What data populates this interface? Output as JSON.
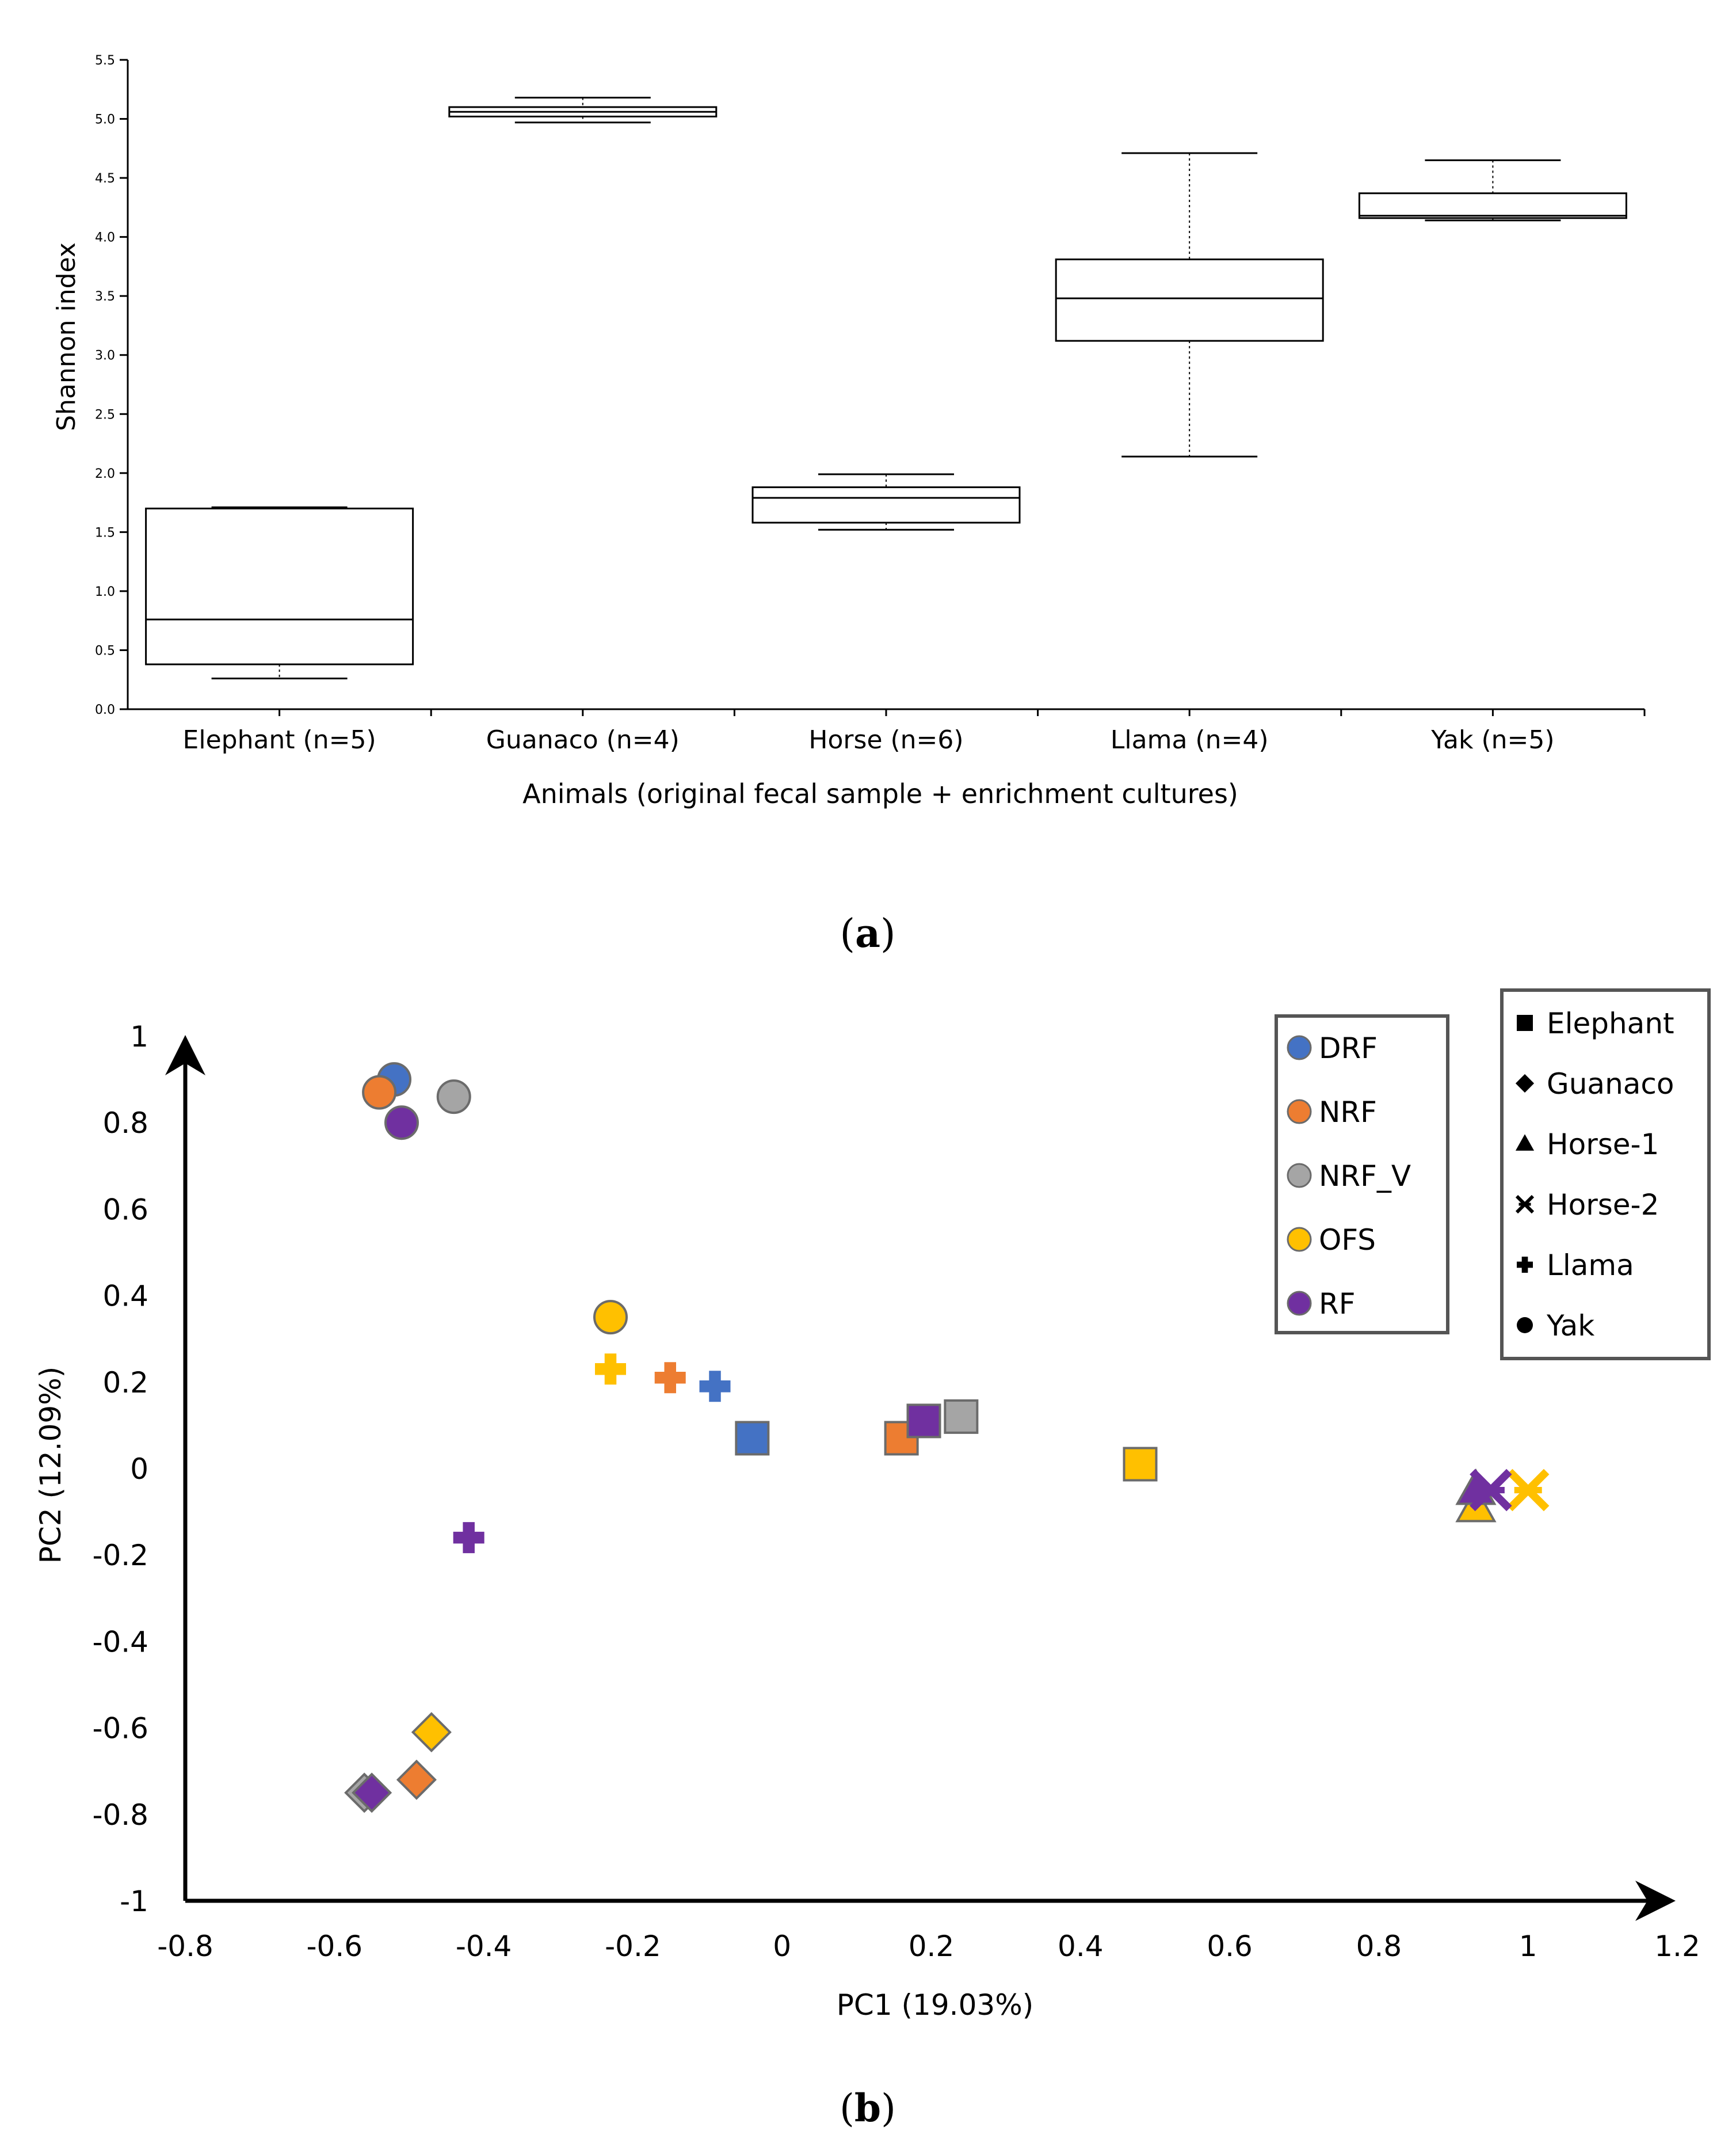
{
  "panel_a_label": {
    "open": "(",
    "letter": "a",
    "close": ")"
  },
  "panel_b_label": {
    "open": "(",
    "letter": "b",
    "close": ")"
  },
  "colors": {
    "DRF": "#4472C4",
    "NRF": "#ED7D31",
    "NRF_V": "#A5A5A5",
    "OFS": "#FFC000",
    "RF": "#7030A0"
  },
  "chart_data": [
    {
      "type": "box",
      "xlabel": "Animals (original fecal sample + enrichment cultures)",
      "ylabel": "Shannon index",
      "ylim": [
        0,
        5.5
      ],
      "y_ticks": [
        "0.0",
        "0.5",
        "1.0",
        "1.5",
        "2.0",
        "2.5",
        "3.0",
        "3.5",
        "4.0",
        "4.5",
        "5.0",
        "5.5"
      ],
      "categories": [
        "Elephant (n=5)",
        "Guanaco (n=4)",
        "Horse (n=6)",
        "Llama (n=4)",
        "Yak (n=5)"
      ],
      "boxes": [
        {
          "min": 0.26,
          "q1": 0.38,
          "median": 0.76,
          "q3": 1.7,
          "max": 1.71
        },
        {
          "min": 4.97,
          "q1": 5.02,
          "median": 5.06,
          "q3": 5.1,
          "max": 5.18
        },
        {
          "min": 1.52,
          "q1": 1.58,
          "median": 1.79,
          "q3": 1.88,
          "max": 1.99
        },
        {
          "min": 2.14,
          "q1": 3.12,
          "median": 3.48,
          "q3": 3.81,
          "max": 4.71
        },
        {
          "min": 4.14,
          "q1": 4.16,
          "median": 4.18,
          "q3": 4.37,
          "max": 4.65
        }
      ]
    },
    {
      "type": "scatter",
      "xlabel": "PC1 (19.03%)",
      "ylabel": "PC2 (12.09%)",
      "xlim": [
        -0.8,
        1.2
      ],
      "ylim": [
        -1,
        1
      ],
      "x_ticks": [
        "-0.8",
        "-0.6",
        "-0.4",
        "-0.2",
        "0",
        "0.2",
        "0.4",
        "0.6",
        "0.8",
        "1",
        "1.2"
      ],
      "y_ticks": [
        "1",
        "0.8",
        "0.6",
        "0.4",
        "0.2",
        "0",
        "-0.2",
        "-0.4",
        "-0.6",
        "-0.8",
        "-1"
      ],
      "legend_color": [
        "DRF",
        "NRF",
        "NRF_V",
        "OFS",
        "RF"
      ],
      "legend_shape": [
        {
          "label": "Elephant",
          "shape": "square"
        },
        {
          "label": "Guanaco",
          "shape": "diamond"
        },
        {
          "label": "Horse-1",
          "shape": "triangle"
        },
        {
          "label": "Horse-2",
          "shape": "star"
        },
        {
          "label": "Llama",
          "shape": "plus"
        },
        {
          "label": "Yak",
          "shape": "circle"
        }
      ],
      "legend_position": "top-right",
      "points": [
        {
          "group": "DRF",
          "animal": "Yak",
          "x": -0.52,
          "y": 0.9
        },
        {
          "group": "NRF",
          "animal": "Yak",
          "x": -0.54,
          "y": 0.87
        },
        {
          "group": "NRF_V",
          "animal": "Yak",
          "x": -0.44,
          "y": 0.86
        },
        {
          "group": "RF",
          "animal": "Yak",
          "x": -0.51,
          "y": 0.8
        },
        {
          "group": "OFS",
          "animal": "Yak",
          "x": -0.23,
          "y": 0.35
        },
        {
          "group": "OFS",
          "animal": "Llama",
          "x": -0.23,
          "y": 0.23
        },
        {
          "group": "NRF",
          "animal": "Llama",
          "x": -0.15,
          "y": 0.21
        },
        {
          "group": "DRF",
          "animal": "Llama",
          "x": -0.09,
          "y": 0.19
        },
        {
          "group": "RF",
          "animal": "Llama",
          "x": -0.42,
          "y": -0.16
        },
        {
          "group": "DRF",
          "animal": "Elephant",
          "x": -0.04,
          "y": 0.07
        },
        {
          "group": "NRF",
          "animal": "Elephant",
          "x": 0.16,
          "y": 0.07
        },
        {
          "group": "RF",
          "animal": "Elephant",
          "x": 0.19,
          "y": 0.11
        },
        {
          "group": "NRF_V",
          "animal": "Elephant",
          "x": 0.24,
          "y": 0.12
        },
        {
          "group": "OFS",
          "animal": "Elephant",
          "x": 0.48,
          "y": 0.01
        },
        {
          "group": "NRF_V",
          "animal": "Guanaco",
          "x": -0.56,
          "y": -0.75
        },
        {
          "group": "RF",
          "animal": "Guanaco",
          "x": -0.55,
          "y": -0.75
        },
        {
          "group": "NRF",
          "animal": "Guanaco",
          "x": -0.49,
          "y": -0.72
        },
        {
          "group": "OFS",
          "animal": "Guanaco",
          "x": -0.47,
          "y": -0.61
        },
        {
          "group": "OFS",
          "animal": "Horse-1",
          "x": 0.93,
          "y": -0.09
        },
        {
          "group": "RF",
          "animal": "Horse-1",
          "x": 0.93,
          "y": -0.05
        },
        {
          "group": "OFS",
          "animal": "Horse-2",
          "x": 1.0,
          "y": -0.05
        },
        {
          "group": "RF",
          "animal": "Horse-2",
          "x": 0.95,
          "y": -0.05
        }
      ]
    }
  ]
}
